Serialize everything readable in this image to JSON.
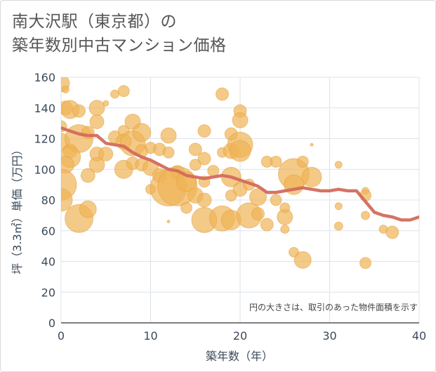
{
  "chart_data": {
    "type": "scatter",
    "title": "南大沢駅（東京都）の\n築年数別中古マンション価格",
    "xlabel": "築年数（年）",
    "ylabel": "坪（3.3㎡）単価（万円）",
    "xlim": [
      0,
      40
    ],
    "ylim": [
      0,
      160
    ],
    "xticks": [
      0,
      10,
      20,
      30,
      40
    ],
    "yticks": [
      0,
      20,
      40,
      60,
      80,
      100,
      120,
      140,
      160
    ],
    "grid": true,
    "note": "円の大きさは、取引のあった物件面積を示す",
    "colors": {
      "bubble": "#f0b456",
      "line": "#d36b5c",
      "grid": "#dde3ea"
    },
    "trend_line": {
      "x": [
        0,
        1,
        2,
        3,
        4,
        5,
        6,
        7,
        8,
        9,
        10,
        11,
        12,
        13,
        14,
        15,
        16,
        17,
        18,
        19,
        20,
        21,
        22,
        23,
        24,
        25,
        26,
        27,
        28,
        29,
        30,
        31,
        32,
        33,
        34,
        35,
        36,
        37,
        38,
        39,
        40
      ],
      "y": [
        127,
        125,
        123,
        122,
        122,
        117,
        116,
        115,
        111,
        108,
        106,
        103,
        100,
        99,
        96,
        95,
        94,
        95,
        96,
        95,
        93,
        91,
        89,
        85,
        85,
        86,
        87,
        88,
        87,
        86,
        86,
        87,
        86,
        86,
        79,
        72,
        70,
        69,
        67,
        67,
        69
      ]
    },
    "bubbles": [
      {
        "x": 0,
        "y": 156,
        "r": 12
      },
      {
        "x": 0.5,
        "y": 152,
        "r": 5
      },
      {
        "x": 0.5,
        "y": 140,
        "r": 10
      },
      {
        "x": 1,
        "y": 139,
        "r": 13
      },
      {
        "x": 2,
        "y": 138,
        "r": 9
      },
      {
        "x": 0,
        "y": 128,
        "r": 8
      },
      {
        "x": 0,
        "y": 118,
        "r": 12
      },
      {
        "x": 1,
        "y": 112,
        "r": 10
      },
      {
        "x": 2,
        "y": 120,
        "r": 20
      },
      {
        "x": 1,
        "y": 108,
        "r": 15
      },
      {
        "x": 0.5,
        "y": 103,
        "r": 12
      },
      {
        "x": 0,
        "y": 90,
        "r": 22
      },
      {
        "x": 0,
        "y": 80,
        "r": 16
      },
      {
        "x": 2,
        "y": 68,
        "r": 20
      },
      {
        "x": 3,
        "y": 74,
        "r": 12
      },
      {
        "x": 3,
        "y": 96,
        "r": 10
      },
      {
        "x": 4,
        "y": 103,
        "r": 11
      },
      {
        "x": 4,
        "y": 110,
        "r": 10
      },
      {
        "x": 4,
        "y": 140,
        "r": 11
      },
      {
        "x": 4,
        "y": 131,
        "r": 10
      },
      {
        "x": 3,
        "y": 124,
        "r": 9
      },
      {
        "x": 5,
        "y": 110,
        "r": 10
      },
      {
        "x": 5,
        "y": 143,
        "r": 4
      },
      {
        "x": 6,
        "y": 149,
        "r": 6
      },
      {
        "x": 7,
        "y": 151,
        "r": 8
      },
      {
        "x": 6,
        "y": 121,
        "r": 9
      },
      {
        "x": 7,
        "y": 125,
        "r": 8
      },
      {
        "x": 7,
        "y": 118,
        "r": 11
      },
      {
        "x": 7,
        "y": 100,
        "r": 13
      },
      {
        "x": 8,
        "y": 131,
        "r": 11
      },
      {
        "x": 8,
        "y": 117,
        "r": 18
      },
      {
        "x": 8,
        "y": 104,
        "r": 9
      },
      {
        "x": 9,
        "y": 124,
        "r": 13
      },
      {
        "x": 9,
        "y": 112,
        "r": 9
      },
      {
        "x": 9,
        "y": 103,
        "r": 9
      },
      {
        "x": 10,
        "y": 114,
        "r": 8
      },
      {
        "x": 10,
        "y": 87,
        "r": 7
      },
      {
        "x": 10,
        "y": 101,
        "r": 11
      },
      {
        "x": 11,
        "y": 113,
        "r": 9
      },
      {
        "x": 11,
        "y": 96,
        "r": 10
      },
      {
        "x": 12,
        "y": 122,
        "r": 11
      },
      {
        "x": 12,
        "y": 111,
        "r": 8
      },
      {
        "x": 12,
        "y": 88,
        "r": 26
      },
      {
        "x": 12,
        "y": 66,
        "r": 2
      },
      {
        "x": 13,
        "y": 98,
        "r": 10
      },
      {
        "x": 13,
        "y": 89,
        "r": 28
      },
      {
        "x": 14,
        "y": 92,
        "r": 14
      },
      {
        "x": 14,
        "y": 75,
        "r": 8
      },
      {
        "x": 15,
        "y": 113,
        "r": 9
      },
      {
        "x": 15,
        "y": 103,
        "r": 8
      },
      {
        "x": 15,
        "y": 83,
        "r": 11
      },
      {
        "x": 16,
        "y": 125,
        "r": 9
      },
      {
        "x": 16,
        "y": 107,
        "r": 9
      },
      {
        "x": 16,
        "y": 92,
        "r": 8
      },
      {
        "x": 16,
        "y": 80,
        "r": 10
      },
      {
        "x": 16,
        "y": 67,
        "r": 18
      },
      {
        "x": 17,
        "y": 99,
        "r": 8
      },
      {
        "x": 18,
        "y": 149,
        "r": 9
      },
      {
        "x": 18,
        "y": 111,
        "r": 7
      },
      {
        "x": 18,
        "y": 68,
        "r": 18
      },
      {
        "x": 19,
        "y": 123,
        "r": 9
      },
      {
        "x": 19,
        "y": 112,
        "r": 11
      },
      {
        "x": 19,
        "y": 95,
        "r": 14
      },
      {
        "x": 19,
        "y": 83,
        "r": 8
      },
      {
        "x": 19,
        "y": 67,
        "r": 14
      },
      {
        "x": 20,
        "y": 138,
        "r": 9
      },
      {
        "x": 20,
        "y": 132,
        "r": 11
      },
      {
        "x": 20,
        "y": 116,
        "r": 18
      },
      {
        "x": 20,
        "y": 112,
        "r": 15
      },
      {
        "x": 20,
        "y": 87,
        "r": 10
      },
      {
        "x": 21,
        "y": 70,
        "r": 18
      },
      {
        "x": 21,
        "y": 90,
        "r": 8
      },
      {
        "x": 22,
        "y": 82,
        "r": 12
      },
      {
        "x": 22,
        "y": 71,
        "r": 9
      },
      {
        "x": 23,
        "y": 105,
        "r": 8
      },
      {
        "x": 23,
        "y": 64,
        "r": 9
      },
      {
        "x": 24,
        "y": 80,
        "r": 8
      },
      {
        "x": 24,
        "y": 105,
        "r": 8
      },
      {
        "x": 25,
        "y": 69,
        "r": 11
      },
      {
        "x": 25,
        "y": 61,
        "r": 6
      },
      {
        "x": 25,
        "y": 75,
        "r": 7
      },
      {
        "x": 26,
        "y": 97,
        "r": 22
      },
      {
        "x": 26,
        "y": 90,
        "r": 14
      },
      {
        "x": 26,
        "y": 46,
        "r": 7
      },
      {
        "x": 27,
        "y": 41,
        "r": 12
      },
      {
        "x": 27,
        "y": 105,
        "r": 8
      },
      {
        "x": 28,
        "y": 95,
        "r": 14
      },
      {
        "x": 28,
        "y": 116,
        "r": 2
      },
      {
        "x": 31,
        "y": 103,
        "r": 5
      },
      {
        "x": 31,
        "y": 76,
        "r": 5
      },
      {
        "x": 31,
        "y": 63,
        "r": 6
      },
      {
        "x": 34,
        "y": 86,
        "r": 5
      },
      {
        "x": 34,
        "y": 83,
        "r": 8
      },
      {
        "x": 34,
        "y": 70,
        "r": 6
      },
      {
        "x": 34,
        "y": 39,
        "r": 8
      },
      {
        "x": 36,
        "y": 61,
        "r": 6
      },
      {
        "x": 37,
        "y": 59,
        "r": 9
      }
    ]
  }
}
